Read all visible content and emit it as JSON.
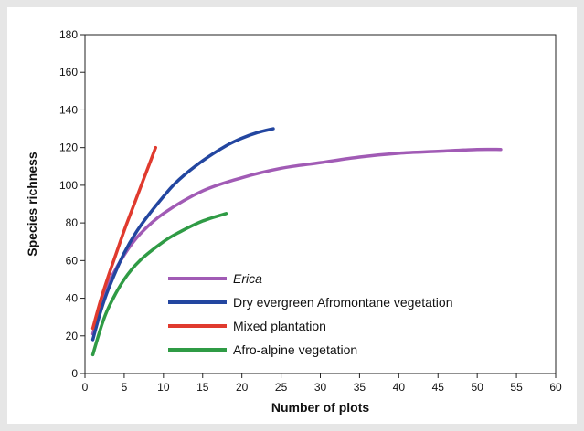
{
  "chart_data": {
    "type": "line",
    "title": "",
    "xlabel": "Number of plots",
    "ylabel": "Species richness",
    "xlim": [
      0,
      60
    ],
    "ylim": [
      0,
      180
    ],
    "x_ticks": [
      "0",
      "5",
      "10",
      "15",
      "20",
      "25",
      "30",
      "35",
      "40",
      "45",
      "50",
      "55",
      "60"
    ],
    "y_ticks": [
      "0",
      "20",
      "40",
      "60",
      "80",
      "100",
      "120",
      "140",
      "160",
      "180"
    ],
    "grid": false,
    "legend_position": "bottom-right",
    "series": [
      {
        "name": "Erica",
        "italic": true,
        "color": "#a15bb5",
        "x": [
          1,
          2,
          3,
          5,
          7,
          10,
          15,
          20,
          25,
          30,
          35,
          40,
          45,
          50,
          53
        ],
        "y": [
          21,
          37,
          48,
          63,
          74,
          85,
          97,
          104,
          109,
          112,
          115,
          117,
          118,
          119,
          119
        ]
      },
      {
        "name": "Dry evergreen Afromontane vegetation",
        "italic": false,
        "color": "#2346a0",
        "x": [
          1,
          2,
          3,
          5,
          7,
          10,
          12,
          15,
          18,
          20,
          22,
          24
        ],
        "y": [
          18,
          33,
          45,
          64,
          78,
          94,
          103,
          113,
          121,
          125,
          128,
          130
        ]
      },
      {
        "name": "Mixed plantation",
        "italic": false,
        "color": "#e03a2e",
        "x": [
          1,
          2,
          3,
          4,
          5,
          6,
          7,
          8,
          9
        ],
        "y": [
          24,
          39,
          52,
          64,
          76,
          87,
          98,
          109,
          120
        ]
      },
      {
        "name": "Afro-alpine vegetation",
        "italic": false,
        "color": "#2f9b45",
        "x": [
          1,
          2,
          3,
          5,
          7,
          10,
          12,
          15,
          18
        ],
        "y": [
          10,
          24,
          35,
          50,
          60,
          70,
          75,
          81,
          85
        ]
      }
    ]
  }
}
